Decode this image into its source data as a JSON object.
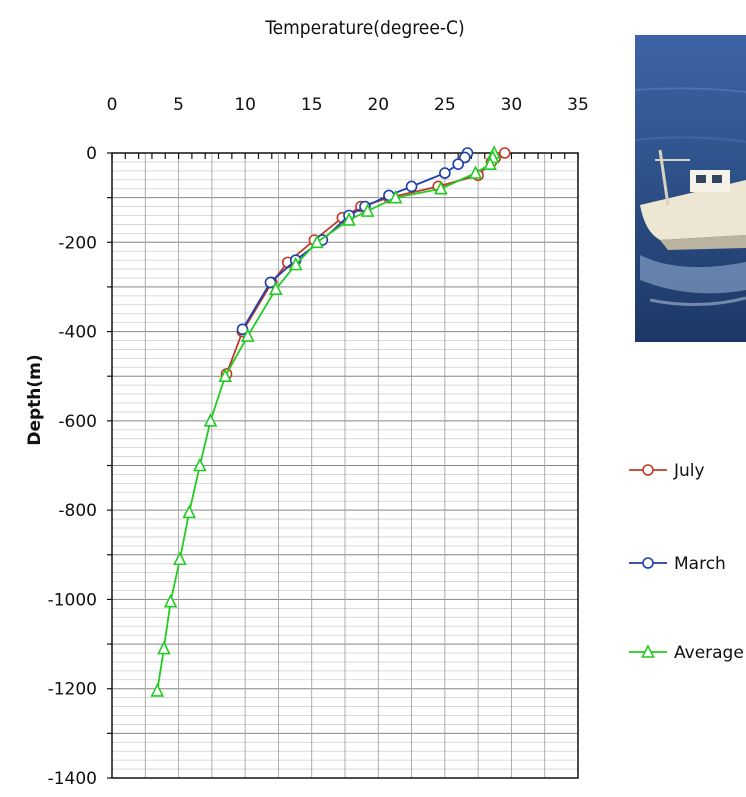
{
  "chart_data": {
    "type": "line",
    "title": "",
    "xlabel": "Temperature(degree-C)",
    "ylabel": "Depth(m)",
    "xlim": [
      0,
      35
    ],
    "ylim": [
      -1400,
      0
    ],
    "x_ticks": [
      "0",
      "5",
      "10",
      "15",
      "20",
      "25",
      "30",
      "35"
    ],
    "y_ticks": [
      "0",
      "-200",
      "-400",
      "-600",
      "-800",
      "-1000",
      "-1200",
      "-1400"
    ],
    "x_axis_position": "top",
    "grid": true,
    "legend_position": "right",
    "series": [
      {
        "name": "July",
        "color": "#c0392b",
        "marker": "circle",
        "points": [
          {
            "x": 29.5,
            "y": 0
          },
          {
            "x": 28.8,
            "y": -10
          },
          {
            "x": 28.5,
            "y": -20
          },
          {
            "x": 27.5,
            "y": -50
          },
          {
            "x": 24.5,
            "y": -75
          },
          {
            "x": 20.8,
            "y": -100
          },
          {
            "x": 18.7,
            "y": -120
          },
          {
            "x": 17.3,
            "y": -145
          },
          {
            "x": 15.2,
            "y": -195
          },
          {
            "x": 13.2,
            "y": -245
          },
          {
            "x": 12.0,
            "y": -290
          },
          {
            "x": 9.8,
            "y": -400
          },
          {
            "x": 8.6,
            "y": -495
          }
        ]
      },
      {
        "name": "March",
        "color": "#1f3fa8",
        "marker": "circle",
        "points": [
          {
            "x": 26.7,
            "y": 0
          },
          {
            "x": 26.5,
            "y": -10
          },
          {
            "x": 26.0,
            "y": -25
          },
          {
            "x": 25.0,
            "y": -45
          },
          {
            "x": 22.5,
            "y": -75
          },
          {
            "x": 20.8,
            "y": -95
          },
          {
            "x": 19.0,
            "y": -120
          },
          {
            "x": 17.8,
            "y": -140
          },
          {
            "x": 15.8,
            "y": -195
          },
          {
            "x": 13.8,
            "y": -240
          },
          {
            "x": 11.9,
            "y": -290
          },
          {
            "x": 9.8,
            "y": -395
          }
        ]
      },
      {
        "name": "Average",
        "color": "#22cc22",
        "marker": "triangle",
        "points": [
          {
            "x": 28.7,
            "y": 0
          },
          {
            "x": 28.6,
            "y": -10
          },
          {
            "x": 28.4,
            "y": -25
          },
          {
            "x": 27.3,
            "y": -45
          },
          {
            "x": 24.7,
            "y": -80
          },
          {
            "x": 21.3,
            "y": -100
          },
          {
            "x": 19.2,
            "y": -130
          },
          {
            "x": 17.8,
            "y": -150
          },
          {
            "x": 15.4,
            "y": -200
          },
          {
            "x": 13.8,
            "y": -250
          },
          {
            "x": 12.3,
            "y": -305
          },
          {
            "x": 10.2,
            "y": -410
          },
          {
            "x": 8.5,
            "y": -500
          },
          {
            "x": 7.4,
            "y": -600
          },
          {
            "x": 6.6,
            "y": -700
          },
          {
            "x": 5.8,
            "y": -805
          },
          {
            "x": 5.1,
            "y": -910
          },
          {
            "x": 4.4,
            "y": -1005
          },
          {
            "x": 3.9,
            "y": -1110
          },
          {
            "x": 3.4,
            "y": -1205
          }
        ]
      }
    ]
  },
  "photo": {
    "description_icon": "boat-photo-icon",
    "sea_color": "#2c4f86",
    "boat_color": "#ece6d2"
  }
}
